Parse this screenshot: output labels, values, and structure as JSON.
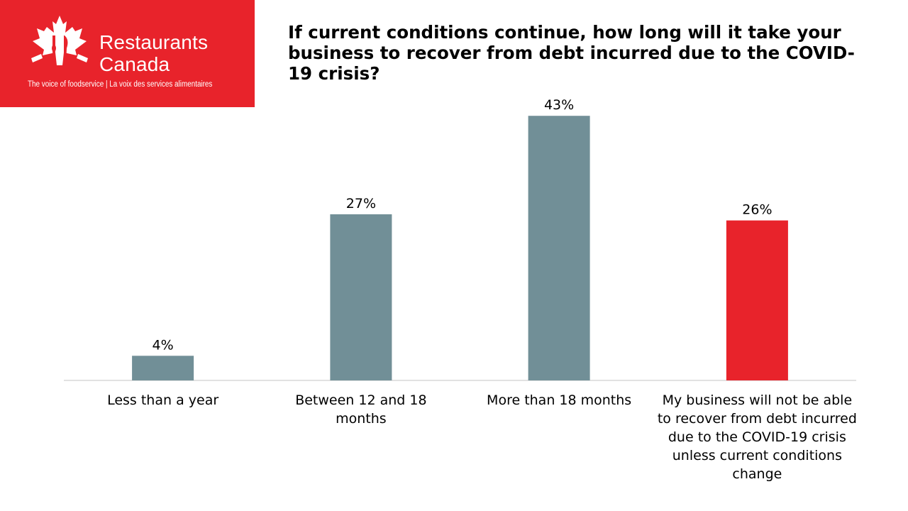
{
  "brand": {
    "name_line1": "Restaurants",
    "name_line2": "Canada",
    "tagline": "The voice of foodservice | La voix des services alimentaires",
    "color": "#e8232b"
  },
  "chart_data": {
    "type": "bar",
    "title": "If current conditions continue, how long will it take your business to recover from debt incurred due to the COVID-19 crisis?",
    "categories": [
      "Less than a year",
      "Between 12 and 18 months",
      "More than 18 months",
      "My business will not be able to recover from debt incurred due to the COVID-19 crisis unless current conditions change"
    ],
    "values": [
      4,
      27,
      43,
      26
    ],
    "data_labels": [
      "4%",
      "27%",
      "43%",
      "26%"
    ],
    "bar_colors": [
      "#718f97",
      "#718f97",
      "#718f97",
      "#e8232b"
    ],
    "xlabel": "",
    "ylabel": "",
    "ylim": [
      0,
      45
    ],
    "grid": false,
    "legend": "none"
  }
}
